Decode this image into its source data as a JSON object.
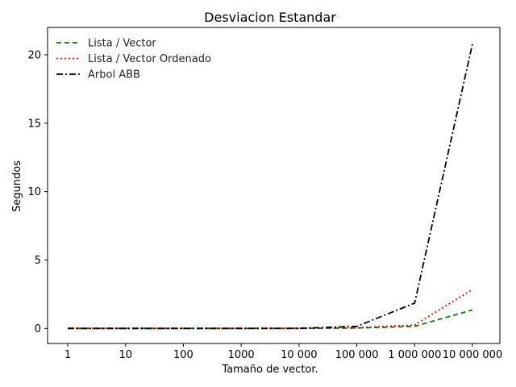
{
  "chart_data": {
    "type": "line",
    "title": "Desviacion Estandar",
    "xlabel": "Tamaño de vector.",
    "ylabel": "Segundos",
    "categories": [
      "1",
      "10",
      "100",
      "1000",
      "10 000",
      "100 000",
      "1 000 000",
      "10 000 000"
    ],
    "yticks": [
      0,
      5,
      10,
      15,
      20
    ],
    "ytick_labels": [
      "0",
      "5",
      "10",
      "15",
      "20"
    ],
    "ylim": [
      -1.1,
      22
    ],
    "grid": false,
    "legend_position": "top-left",
    "series": [
      {
        "name": "Lista / Vector",
        "color": "#008000",
        "style": "dashed",
        "values": [
          0,
          0,
          0,
          0,
          0,
          0.03,
          0.15,
          1.35
        ]
      },
      {
        "name": "Lista / Vector Ordenado",
        "color": "#ff0000",
        "style": "dotted",
        "values": [
          0,
          0,
          0,
          0,
          0,
          0.05,
          0.25,
          2.85
        ]
      },
      {
        "name": "Arbol ABB",
        "color": "#000000",
        "style": "dashdot",
        "values": [
          0,
          0,
          0,
          0,
          0.01,
          0.15,
          1.85,
          20.8
        ]
      }
    ]
  }
}
